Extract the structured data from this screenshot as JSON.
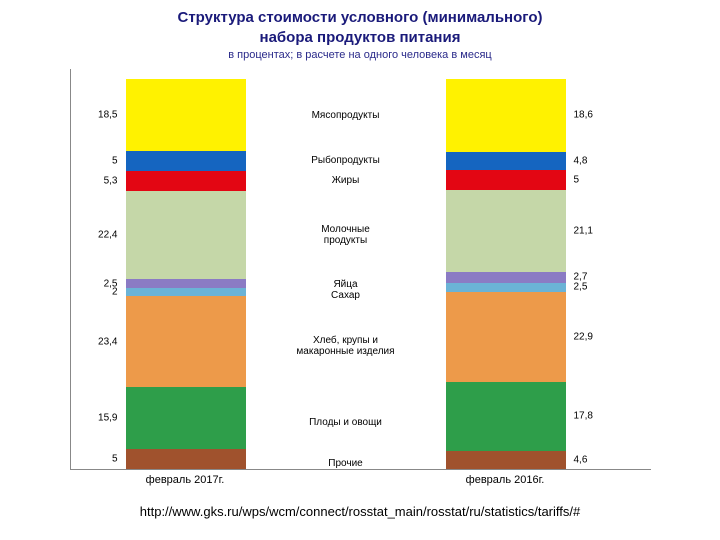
{
  "title_line1": "Структура стоимости условного (минимального)",
  "title_line2": "набора продуктов питания",
  "subtitle": "в процентах; в расчете на одного человека в месяц",
  "source_url": "http://www.gks.ru/wps/wcm/connect/rosstat_main/rosstat/ru/statistics/tariffs/#",
  "x_labels": [
    "февраль 2017г.",
    "февраль 2016г."
  ],
  "categories": [
    {
      "label": "Мясопродукты",
      "color": "#fff200"
    },
    {
      "label": "Рыбопродукты",
      "color": "#1565c0"
    },
    {
      "label": "Жиры",
      "color": "#e30613"
    },
    {
      "label": "Молочные\nпродукты",
      "color": "#c5d7a8"
    },
    {
      "label": "Яйца",
      "color": "#8b7bc4"
    },
    {
      "label": "Сахар",
      "color": "#6bb3d6"
    },
    {
      "label": "Хлеб, крупы и\nмакаронные изделия",
      "color": "#ed9a4a"
    },
    {
      "label": "Плоды и овощи",
      "color": "#2e9e4a"
    },
    {
      "label": "Прочие",
      "color": "#a0522d"
    }
  ],
  "bars": [
    {
      "name": "feb2017",
      "values": [
        18.5,
        5.0,
        5.3,
        22.4,
        2.5,
        2.0,
        23.4,
        15.9,
        5.0
      ]
    },
    {
      "name": "feb2016",
      "values": [
        18.6,
        4.8,
        5.0,
        21.1,
        2.7,
        2.5,
        22.9,
        17.8,
        4.6
      ]
    }
  ],
  "axis_color": "#888888",
  "background": "#ffffff",
  "value_fontsize": 10,
  "label_fontsize": 10
}
